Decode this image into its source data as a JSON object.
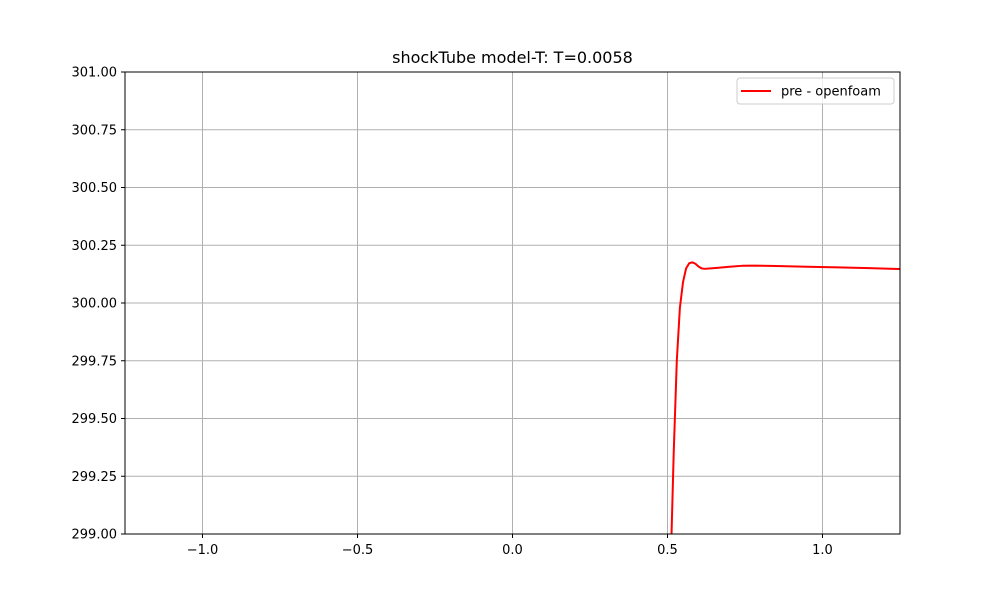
{
  "chart_data": {
    "type": "line",
    "title": "shockTube model-T: T=0.0058",
    "xlabel": "",
    "ylabel": "",
    "xlim": [
      -1.25,
      1.25
    ],
    "ylim": [
      299.0,
      301.0
    ],
    "xticks": [
      -1.0,
      -0.5,
      0.0,
      0.5,
      1.0
    ],
    "xtick_labels": [
      "−1.0",
      "−0.5",
      "0.0",
      "0.5",
      "1.0"
    ],
    "yticks": [
      299.0,
      299.25,
      299.5,
      299.75,
      300.0,
      300.25,
      300.5,
      300.75,
      301.0
    ],
    "ytick_labels": [
      "299.00",
      "299.25",
      "299.50",
      "299.75",
      "300.00",
      "300.25",
      "300.50",
      "300.75",
      "301.00"
    ],
    "grid": true,
    "legend_position": "top-right",
    "series": [
      {
        "name": "pre - openfoam",
        "color": "#ff0000",
        "x": [
          0.513,
          0.52,
          0.53,
          0.54,
          0.55,
          0.56,
          0.57,
          0.58,
          0.59,
          0.6,
          0.61,
          0.62,
          0.64,
          0.66,
          0.7,
          0.74,
          0.78,
          0.85,
          0.95,
          1.05,
          1.15,
          1.25
        ],
        "y": [
          299.0,
          299.35,
          299.75,
          299.98,
          300.09,
          300.15,
          300.172,
          300.176,
          300.17,
          300.158,
          300.15,
          300.148,
          300.15,
          300.152,
          300.157,
          300.161,
          300.162,
          300.16,
          300.157,
          300.154,
          300.151,
          300.147
        ]
      }
    ]
  }
}
